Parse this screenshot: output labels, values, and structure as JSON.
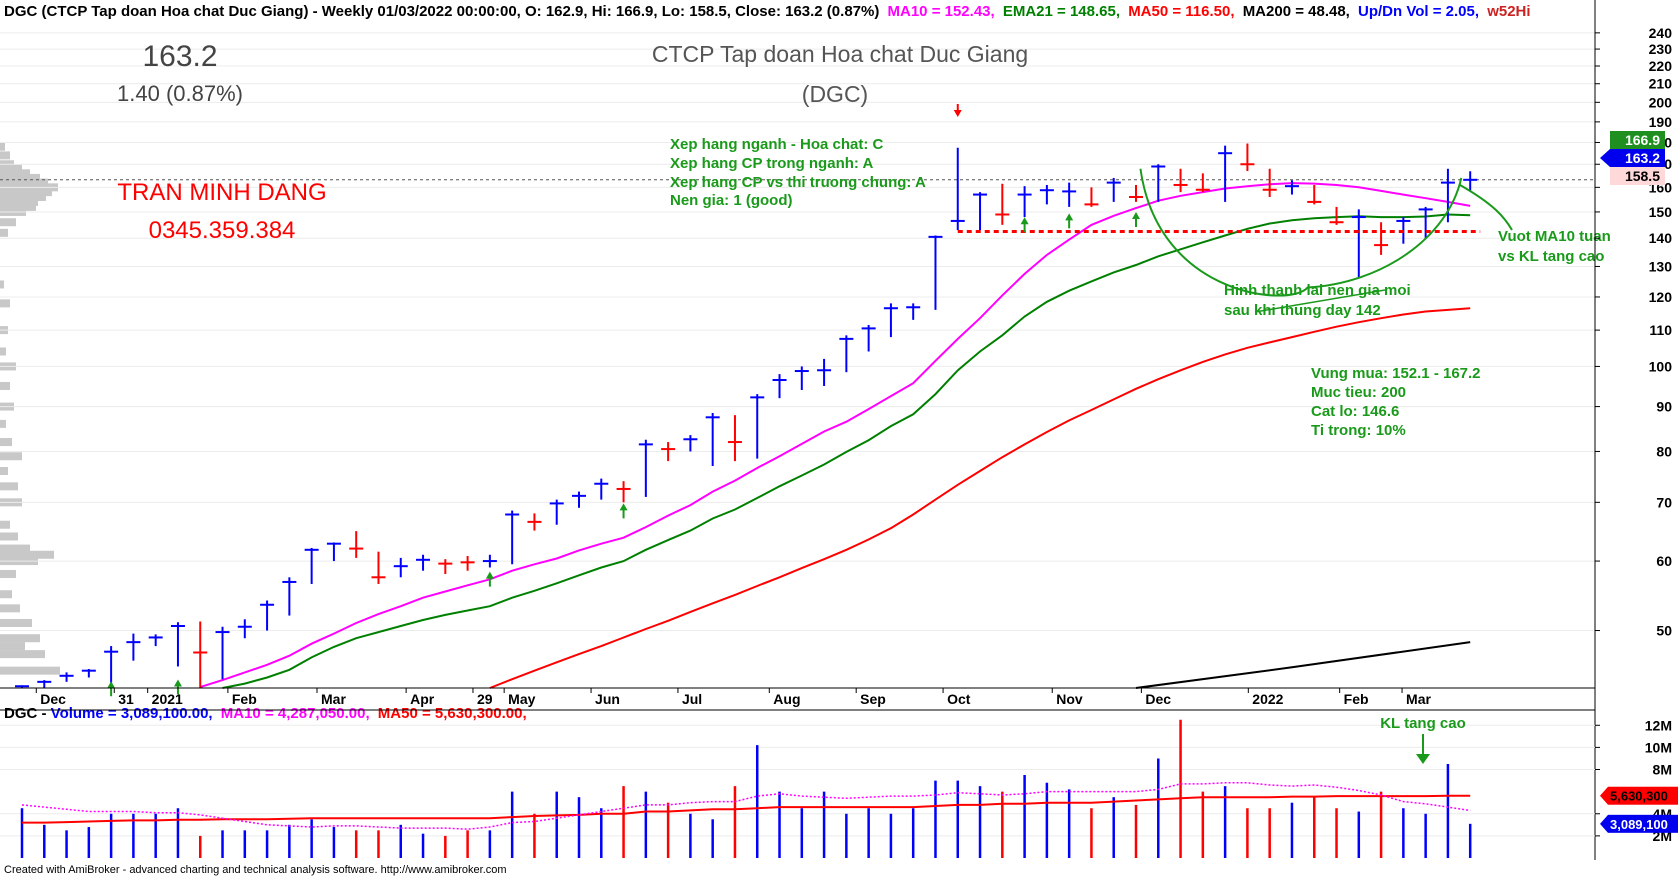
{
  "header": {
    "main_prefix": "DGC (CTCP Tap doan Hoa chat Duc Giang) - Weekly 01/03/2022 00:00:00, O: 162.9, Hi: 166.9, Lo: 158.5, Close: 163.2 (0.87%)",
    "ma10": "MA10 = 152.43,",
    "ema21": "EMA21 = 148.65,",
    "ma50": "MA50 = 116.50,",
    "ma200": "MA200 = 48.48,",
    "updn": "Up/Dn Vol = 2.05,",
    "w52": "w52Hi",
    "volume_prefix": "DGC - ",
    "volume_label": "Volume = 3,089,100.00,",
    "volume_ma10": "MA10 = 4,287,050.00,",
    "volume_ma50": "MA50 = 5,630,300.00,"
  },
  "price_box": {
    "price": "163.2",
    "change": "1.40 (0.87%)"
  },
  "title": {
    "line1": "CTCP Tap doan Hoa chat Duc Giang",
    "line2": "(DGC)"
  },
  "author": {
    "name": "TRAN MINH DANG",
    "phone": "0345.359.384"
  },
  "annotations": {
    "rating": [
      "Xep hang nganh - Hoa chat: C",
      "Xep hang CP trong nganh: A",
      "Xep hang CP vs thi truong chung: A",
      "Nen gia: 1 (good)"
    ],
    "base": [
      "Hinh thanh lai nen gia moi",
      "sau khi thung day 142"
    ],
    "breakout": [
      "Vuot MA10 tuan",
      "vs KL tang cao"
    ],
    "plan": [
      "Vung mua: 152.1 - 167.2",
      "Muc tieu: 200",
      "Cat lo: 146.6",
      "Ti trong: 10%"
    ],
    "volume_note": "KL tang cao"
  },
  "footer": "Created with AmiBroker - advanced charting and technical analysis software. http://www.amibroker.com",
  "colors": {
    "up": "#0000ff",
    "down": "#ff0000",
    "ma10": "#ff00ff",
    "ema21": "#008000",
    "ma50": "#ff0000",
    "ma200": "#000000",
    "annotation": "#1a9a1a",
    "support": "#ff0000"
  },
  "chart_data": [
    {
      "type": "candlestick",
      "scale": "log",
      "ylim": [
        43,
        245
      ],
      "yticks": [
        50,
        60,
        70,
        80,
        90,
        100,
        110,
        120,
        130,
        140,
        150,
        160,
        170,
        180,
        190,
        200,
        210,
        220,
        230,
        240
      ],
      "x_month_labels": [
        {
          "i": 1,
          "label": "Dec"
        },
        {
          "i": 4.5,
          "label": "31"
        },
        {
          "i": 6,
          "label": "2021"
        },
        {
          "i": 9.6,
          "label": "Feb"
        },
        {
          "i": 13.6,
          "label": "Mar"
        },
        {
          "i": 17.6,
          "label": "Apr"
        },
        {
          "i": 20.6,
          "label": "29"
        },
        {
          "i": 22,
          "label": "May"
        },
        {
          "i": 25.9,
          "label": "Jun"
        },
        {
          "i": 29.8,
          "label": "Jul"
        },
        {
          "i": 33.9,
          "label": "Aug"
        },
        {
          "i": 37.8,
          "label": "Sep"
        },
        {
          "i": 41.7,
          "label": "Oct"
        },
        {
          "i": 46.6,
          "label": "Nov"
        },
        {
          "i": 50.6,
          "label": "Dec"
        },
        {
          "i": 55.4,
          "label": "2022"
        },
        {
          "i": 59.5,
          "label": "Feb"
        },
        {
          "i": 62.3,
          "label": "Mar"
        }
      ],
      "candles": [
        {
          "h": 43.3,
          "l": 43.0,
          "c": 43.2,
          "d": "up"
        },
        {
          "h": 43.9,
          "l": 43.0,
          "c": 43.7,
          "d": "up"
        },
        {
          "h": 44.8,
          "l": 43.7,
          "c": 44.4,
          "d": "up"
        },
        {
          "h": 45.2,
          "l": 44.2,
          "c": 45.0,
          "d": "up"
        },
        {
          "h": 48.0,
          "l": 43.0,
          "c": 47.3,
          "d": "up"
        },
        {
          "h": 49.6,
          "l": 46.2,
          "c": 48.5,
          "d": "up"
        },
        {
          "h": 49.5,
          "l": 48.0,
          "c": 49.1,
          "d": "up"
        },
        {
          "h": 51.1,
          "l": 45.5,
          "c": 50.6,
          "d": "up"
        },
        {
          "h": 51.2,
          "l": 43.0,
          "c": 47.2,
          "d": "down"
        },
        {
          "h": 50.5,
          "l": 44.0,
          "c": 49.8,
          "d": "up"
        },
        {
          "h": 51.5,
          "l": 49.0,
          "c": 50.5,
          "d": "up"
        },
        {
          "h": 54.1,
          "l": 50.0,
          "c": 53.5,
          "d": "up"
        },
        {
          "h": 57.5,
          "l": 52.0,
          "c": 56.8,
          "d": "up"
        },
        {
          "h": 62.1,
          "l": 56.5,
          "c": 61.8,
          "d": "up"
        },
        {
          "h": 63.0,
          "l": 60.0,
          "c": 62.8,
          "d": "up"
        },
        {
          "h": 64.9,
          "l": 60.5,
          "c": 62.0,
          "d": "down"
        },
        {
          "h": 61.5,
          "l": 56.5,
          "c": 57.5,
          "d": "down"
        },
        {
          "h": 60.5,
          "l": 57.5,
          "c": 59.2,
          "d": "up"
        },
        {
          "h": 61.0,
          "l": 58.5,
          "c": 60.2,
          "d": "up"
        },
        {
          "h": 60.3,
          "l": 58.0,
          "c": 59.6,
          "d": "down"
        },
        {
          "h": 60.8,
          "l": 58.5,
          "c": 59.8,
          "d": "down"
        },
        {
          "h": 61.0,
          "l": 59.0,
          "c": 60.0,
          "d": "up"
        },
        {
          "h": 68.5,
          "l": 59.5,
          "c": 67.8,
          "d": "up"
        },
        {
          "h": 68.0,
          "l": 65.0,
          "c": 66.5,
          "d": "down"
        },
        {
          "h": 70.5,
          "l": 66.0,
          "c": 69.8,
          "d": "up"
        },
        {
          "h": 72.0,
          "l": 69.0,
          "c": 71.2,
          "d": "up"
        },
        {
          "h": 74.5,
          "l": 70.5,
          "c": 73.5,
          "d": "up"
        },
        {
          "h": 74.0,
          "l": 70.0,
          "c": 72.5,
          "d": "down"
        },
        {
          "h": 82.5,
          "l": 71.0,
          "c": 81.5,
          "d": "up"
        },
        {
          "h": 82.0,
          "l": 78.0,
          "c": 80.5,
          "d": "down"
        },
        {
          "h": 83.5,
          "l": 80.0,
          "c": 82.6,
          "d": "up"
        },
        {
          "h": 88.5,
          "l": 77.0,
          "c": 87.5,
          "d": "up"
        },
        {
          "h": 88.0,
          "l": 78.0,
          "c": 82.0,
          "d": "down"
        },
        {
          "h": 93.0,
          "l": 78.5,
          "c": 92.2,
          "d": "up"
        },
        {
          "h": 98.0,
          "l": 92.0,
          "c": 96.5,
          "d": "up"
        },
        {
          "h": 100.0,
          "l": 94.0,
          "c": 98.8,
          "d": "up"
        },
        {
          "h": 102.0,
          "l": 95.0,
          "c": 99.0,
          "d": "up"
        },
        {
          "h": 108.5,
          "l": 98.5,
          "c": 107.5,
          "d": "up"
        },
        {
          "h": 111.5,
          "l": 104.0,
          "c": 110.5,
          "d": "up"
        },
        {
          "h": 118.0,
          "l": 108.0,
          "c": 116.5,
          "d": "up"
        },
        {
          "h": 118.0,
          "l": 113.0,
          "c": 116.8,
          "d": "up"
        },
        {
          "h": 141.0,
          "l": 116.0,
          "c": 140.5,
          "d": "up"
        },
        {
          "h": 177.5,
          "l": 143.0,
          "c": 146.5,
          "d": "up"
        },
        {
          "h": 158.0,
          "l": 143.0,
          "c": 157.0,
          "d": "up"
        },
        {
          "h": 161.5,
          "l": 145.0,
          "c": 149.0,
          "d": "down"
        },
        {
          "h": 160.5,
          "l": 148.0,
          "c": 157.0,
          "d": "up"
        },
        {
          "h": 161.0,
          "l": 153.0,
          "c": 158.8,
          "d": "up"
        },
        {
          "h": 162.0,
          "l": 152.0,
          "c": 158.3,
          "d": "up"
        },
        {
          "h": 160.0,
          "l": 152.0,
          "c": 153.0,
          "d": "down"
        },
        {
          "h": 164.0,
          "l": 154.0,
          "c": 162.0,
          "d": "up"
        },
        {
          "h": 161.0,
          "l": 154.0,
          "c": 156.0,
          "d": "down"
        },
        {
          "h": 170.0,
          "l": 154.0,
          "c": 169.0,
          "d": "up"
        },
        {
          "h": 168.0,
          "l": 158.0,
          "c": 161.0,
          "d": "down"
        },
        {
          "h": 166.0,
          "l": 158.0,
          "c": 159.0,
          "d": "down"
        },
        {
          "h": 178.5,
          "l": 154.0,
          "c": 175.0,
          "d": "up"
        },
        {
          "h": 179.5,
          "l": 167.0,
          "c": 170.0,
          "d": "down"
        },
        {
          "h": 168.0,
          "l": 156.0,
          "c": 159.0,
          "d": "down"
        },
        {
          "h": 163.0,
          "l": 157.0,
          "c": 160.5,
          "d": "up"
        },
        {
          "h": 161.0,
          "l": 153.0,
          "c": 154.0,
          "d": "down"
        },
        {
          "h": 152.0,
          "l": 145.0,
          "c": 146.0,
          "d": "down"
        },
        {
          "h": 151.0,
          "l": 126.0,
          "c": 148.0,
          "d": "up"
        },
        {
          "h": 146.0,
          "l": 134.0,
          "c": 137.5,
          "d": "down"
        },
        {
          "h": 148.0,
          "l": 138.0,
          "c": 146.5,
          "d": "up"
        },
        {
          "h": 152.0,
          "l": 140.0,
          "c": 151.0,
          "d": "up"
        },
        {
          "h": 168.0,
          "l": 146.0,
          "c": 162.0,
          "d": "up"
        },
        {
          "h": 166.9,
          "l": 158.5,
          "c": 163.2,
          "d": "up"
        }
      ],
      "series": [
        {
          "name": "MA10",
          "values": [
            null,
            null,
            null,
            null,
            null,
            null,
            null,
            null,
            43.1,
            43.9,
            44.8,
            45.7,
            46.8,
            48.3,
            49.6,
            51.0,
            52.2,
            53.3,
            54.5,
            55.4,
            56.3,
            57.2,
            58.5,
            59.5,
            60.4,
            61.7,
            62.8,
            63.8,
            65.6,
            67.6,
            69.5,
            72.0,
            74.1,
            76.6,
            79.0,
            81.6,
            84.3,
            86.5,
            89.4,
            92.5,
            95.7,
            101.5,
            107.5,
            113.5,
            120.5,
            127.5,
            134.0,
            139.5,
            145.0,
            148.5,
            151.5,
            154.5,
            156.5,
            158.0,
            159.5,
            160.5,
            161.3,
            161.8,
            161.6,
            161.0,
            160.0,
            158.5,
            157.0,
            155.5,
            154.0,
            152.4
          ]
        },
        {
          "name": "EMA21",
          "values": [
            null,
            null,
            null,
            null,
            null,
            null,
            null,
            null,
            null,
            43.0,
            43.5,
            44.2,
            45.1,
            46.6,
            47.9,
            49.0,
            49.8,
            50.6,
            51.4,
            52.1,
            52.7,
            53.3,
            54.5,
            55.5,
            56.6,
            57.8,
            59.0,
            60.0,
            61.8,
            63.4,
            65.0,
            67.1,
            68.7,
            70.8,
            73.0,
            75.1,
            77.3,
            79.9,
            82.4,
            85.5,
            88.2,
            93.0,
            99.0,
            104.0,
            108.5,
            114.0,
            118.5,
            122.0,
            125.0,
            128.0,
            130.5,
            133.5,
            136.0,
            138.5,
            141.0,
            143.5,
            145.5,
            146.8,
            147.5,
            148.0,
            148.3,
            148.0,
            148.0,
            148.2,
            149.0,
            148.7
          ]
        },
        {
          "name": "MA50",
          "values": [
            null,
            null,
            null,
            null,
            null,
            null,
            null,
            null,
            null,
            null,
            null,
            null,
            null,
            null,
            null,
            null,
            null,
            null,
            null,
            null,
            null,
            43.0,
            44.0,
            45.0,
            46.0,
            47.0,
            48.0,
            49.1,
            50.2,
            51.3,
            52.5,
            53.7,
            54.9,
            56.2,
            57.5,
            58.9,
            60.3,
            61.8,
            63.5,
            65.4,
            67.8,
            70.5,
            73.3,
            76.0,
            78.8,
            81.5,
            84.2,
            86.8,
            89.2,
            91.7,
            94.3,
            96.7,
            99.0,
            101.2,
            103.2,
            105.0,
            106.5,
            108.0,
            109.5,
            111.0,
            112.3,
            113.5,
            114.6,
            115.5,
            116.0,
            116.5
          ]
        }
      ],
      "ma200": [
        {
          "i": 50,
          "v": 43.0
        },
        {
          "i": 57,
          "v": 45.4
        },
        {
          "i": 65,
          "v": 48.5
        }
      ],
      "support_line": {
        "value": 142.5,
        "from_i": 42,
        "to_i": 65
      },
      "last_price_labels": [
        {
          "value": 166.9,
          "label": "166.9"
        },
        {
          "value": 163.2,
          "label": "163.2"
        },
        {
          "value": 158.5,
          "label": "158.5"
        }
      ]
    },
    {
      "type": "bar",
      "name": "Volume",
      "yticks": [
        {
          "v": 2,
          "label": "2M"
        },
        {
          "v": 4,
          "label": "4M"
        },
        {
          "v": 8,
          "label": "8M"
        },
        {
          "v": 10,
          "label": "10M"
        },
        {
          "v": 12,
          "label": "12M"
        }
      ],
      "volume_labels": [
        {
          "value": 5.63,
          "label": "5,630,300"
        },
        {
          "value": 3.09,
          "label": "3,089,100"
        }
      ],
      "volume_millions": [
        4.5,
        3.0,
        2.5,
        2.8,
        4.0,
        4.0,
        4.0,
        4.5,
        2.0,
        2.5,
        2.5,
        2.5,
        3.0,
        3.5,
        2.8,
        2.5,
        2.5,
        3.0,
        2.2,
        2.0,
        2.5,
        2.5,
        6.0,
        4.0,
        6.0,
        5.5,
        4.5,
        6.5,
        6.0,
        5.0,
        4.0,
        3.5,
        6.5,
        10.2,
        6.0,
        4.5,
        6.0,
        4.0,
        4.5,
        4.0,
        4.5,
        7.0,
        7.0,
        6.5,
        6.0,
        7.5,
        6.8,
        6.2,
        4.5,
        5.5,
        4.8,
        9.0,
        12.5,
        6.0,
        6.5,
        4.5,
        4.5,
        5.0,
        5.5,
        4.5,
        4.2,
        6.0,
        4.5,
        4.0,
        8.5,
        3.09
      ],
      "ma10": [
        4.8,
        4.6,
        4.4,
        4.2,
        4.2,
        4.2,
        4.1,
        4.1,
        3.9,
        3.6,
        3.3,
        3.0,
        2.9,
        2.8,
        2.9,
        2.9,
        2.8,
        2.7,
        2.7,
        2.7,
        2.6,
        2.8,
        3.2,
        3.3,
        3.6,
        3.9,
        4.2,
        4.5,
        4.8,
        4.8,
        5.0,
        5.1,
        5.1,
        5.6,
        5.8,
        5.6,
        5.5,
        5.4,
        5.5,
        5.6,
        5.6,
        5.7,
        5.9,
        5.8,
        5.7,
        5.8,
        6.0,
        6.0,
        6.0,
        6.0,
        6.0,
        6.2,
        6.7,
        6.7,
        6.8,
        6.8,
        6.6,
        6.5,
        6.6,
        6.4,
        6.1,
        5.7,
        5.1,
        4.9,
        4.6,
        4.29
      ],
      "ma50": [
        3.2,
        3.2,
        3.25,
        3.3,
        3.35,
        3.4,
        3.4,
        3.45,
        3.45,
        3.5,
        3.5,
        3.5,
        3.55,
        3.6,
        3.6,
        3.6,
        3.6,
        3.6,
        3.6,
        3.6,
        3.6,
        3.6,
        3.7,
        3.8,
        3.85,
        3.9,
        4.0,
        4.0,
        4.2,
        4.2,
        4.3,
        4.4,
        4.4,
        4.5,
        4.6,
        4.6,
        4.6,
        4.6,
        4.6,
        4.6,
        4.6,
        4.7,
        4.8,
        4.8,
        4.9,
        4.9,
        5.0,
        5.0,
        5.0,
        5.1,
        5.2,
        5.3,
        5.4,
        5.5,
        5.5,
        5.5,
        5.5,
        5.55,
        5.55,
        5.6,
        5.6,
        5.6,
        5.6,
        5.6,
        5.62,
        5.63
      ]
    }
  ]
}
